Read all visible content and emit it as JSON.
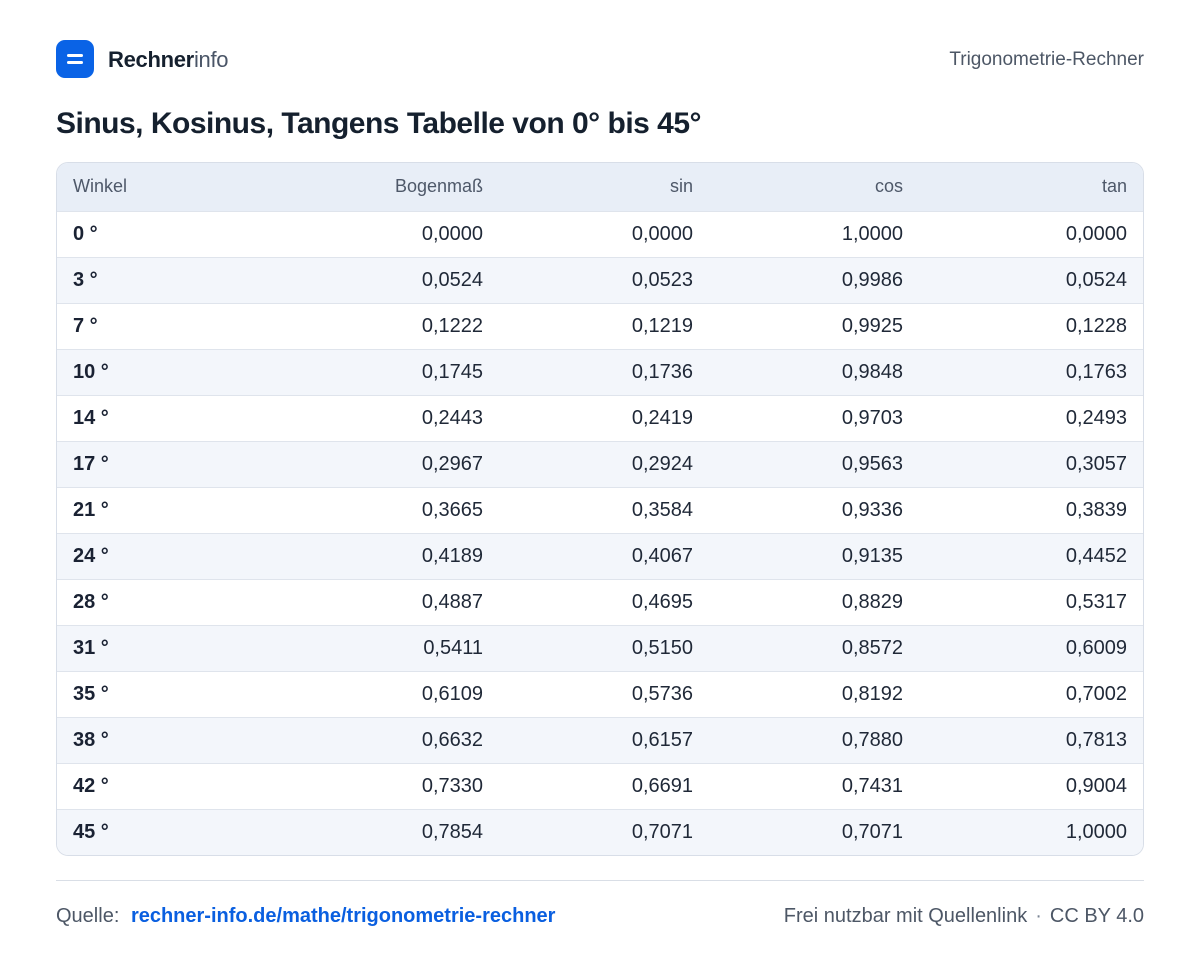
{
  "header": {
    "brand_strong": "Rechner",
    "brand_light": "info",
    "tool_name": "Trigonometrie-Rechner",
    "logo_icon": "equals-icon"
  },
  "title": "Sinus, Kosinus, Tangens Tabelle von 0° bis 45°",
  "table": {
    "columns": [
      "Winkel",
      "Bogenmaß",
      "sin",
      "cos",
      "tan"
    ],
    "rows": [
      [
        "0 °",
        "0,0000",
        "0,0000",
        "1,0000",
        "0,0000"
      ],
      [
        "3 °",
        "0,0524",
        "0,0523",
        "0,9986",
        "0,0524"
      ],
      [
        "7 °",
        "0,1222",
        "0,1219",
        "0,9925",
        "0,1228"
      ],
      [
        "10 °",
        "0,1745",
        "0,1736",
        "0,9848",
        "0,1763"
      ],
      [
        "14 °",
        "0,2443",
        "0,2419",
        "0,9703",
        "0,2493"
      ],
      [
        "17 °",
        "0,2967",
        "0,2924",
        "0,9563",
        "0,3057"
      ],
      [
        "21 °",
        "0,3665",
        "0,3584",
        "0,9336",
        "0,3839"
      ],
      [
        "24 °",
        "0,4189",
        "0,4067",
        "0,9135",
        "0,4452"
      ],
      [
        "28 °",
        "0,4887",
        "0,4695",
        "0,8829",
        "0,5317"
      ],
      [
        "31 °",
        "0,5411",
        "0,5150",
        "0,8572",
        "0,6009"
      ],
      [
        "35 °",
        "0,6109",
        "0,5736",
        "0,8192",
        "0,7002"
      ],
      [
        "38 °",
        "0,6632",
        "0,6157",
        "0,7880",
        "0,7813"
      ],
      [
        "42 °",
        "0,7330",
        "0,6691",
        "0,7431",
        "0,9004"
      ],
      [
        "45 °",
        "0,7854",
        "0,7071",
        "0,7071",
        "1,0000"
      ]
    ]
  },
  "footer": {
    "source_label": "Quelle:",
    "source_link": "rechner-info.de/mathe/trigonometrie-rechner",
    "license_text": "Frei nutzbar mit Quellenlink",
    "separator": "·",
    "license_name": "CC BY 4.0"
  },
  "colors": {
    "accent": "#0a63e6",
    "header_row": "#e8eef7",
    "stripe_row": "#f3f6fb"
  }
}
